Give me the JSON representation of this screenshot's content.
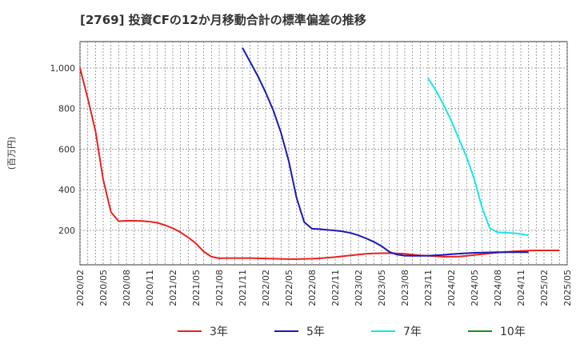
{
  "chart_data": {
    "type": "line",
    "title": "[2769]  投資CFの12か月移動合計の標準偏差の推移",
    "ylabel": "(百万円)",
    "xlabel": "",
    "ylim": [
      30,
      1130
    ],
    "yticks": [
      200,
      400,
      600,
      800,
      1000
    ],
    "ytick_labels": [
      "200",
      "400",
      "600",
      "800",
      "1,000"
    ],
    "xticks": [
      "2020/02",
      "2020/05",
      "2020/08",
      "2020/11",
      "2021/02",
      "2021/05",
      "2021/08",
      "2021/11",
      "2022/02",
      "2022/05",
      "2022/08",
      "2022/11",
      "2023/02",
      "2023/05",
      "2023/08",
      "2023/11",
      "2024/02",
      "2024/05",
      "2024/08",
      "2024/11",
      "2025/02",
      "2025/05"
    ],
    "grid": true,
    "legend_position": "bottom",
    "series": [
      {
        "name": "3年",
        "color": "#e8221f",
        "start_month": 0,
        "values": [
          1000,
          850,
          690,
          450,
          290,
          245,
          247,
          247,
          246,
          243,
          237,
          225,
          210,
          190,
          165,
          135,
          95,
          70,
          62,
          63,
          63,
          63,
          63,
          62,
          61,
          60,
          59,
          58,
          58,
          59,
          60,
          62,
          65,
          68,
          72,
          76,
          80,
          84,
          86,
          87,
          87,
          86,
          84,
          80,
          76,
          74,
          72,
          70,
          70,
          71,
          74,
          78,
          82,
          86,
          90,
          93,
          96,
          98,
          100,
          101,
          101,
          101,
          101
        ]
      },
      {
        "name": "5年",
        "color": "#1a1ab4",
        "start_month": 21,
        "values": [
          1100,
          1030,
          960,
          880,
          790,
          680,
          540,
          360,
          240,
          208,
          206,
          202,
          199,
          194,
          187,
          175,
          160,
          143,
          122,
          94,
          80,
          75,
          74,
          74,
          75,
          77,
          79,
          82,
          85,
          87,
          89,
          90,
          91,
          92,
          92,
          92,
          92,
          92
        ]
      },
      {
        "name": "7年",
        "color": "#19e6e6",
        "start_month": 45,
        "values": [
          950,
          890,
          820,
          740,
          650,
          560,
          450,
          310,
          210,
          190,
          188,
          186,
          182,
          175
        ]
      },
      {
        "name": "10年",
        "color": "#1a8f1a",
        "start_month": 0,
        "values": []
      }
    ]
  }
}
